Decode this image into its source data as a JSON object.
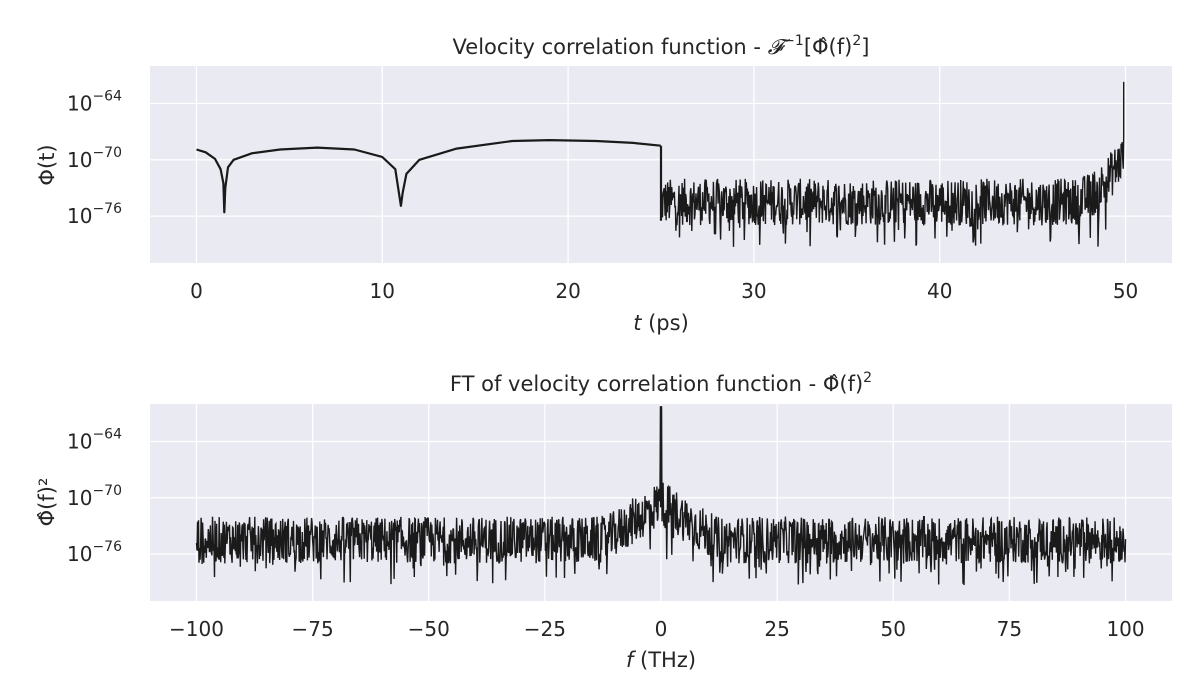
{
  "chart_data": [
    {
      "type": "line",
      "title_prefix": "Velocity correlation function - ",
      "title_math_op": "𝓕",
      "title_math_exp": "−1",
      "title_math_arg": "Φ̂(f)",
      "title_math_arg_exp": "2",
      "xlabel_var": "t",
      "xlabel_unit": " (ps)",
      "ylabel": "Φ(t)",
      "log_y": true,
      "xlim": [
        -2.5,
        52.5
      ],
      "ylim_log10": [
        -81,
        -60
      ],
      "xticks": [
        0,
        10,
        20,
        30,
        40,
        50
      ],
      "xtick_labels": [
        "0",
        "10",
        "20",
        "30",
        "40",
        "50"
      ],
      "yticks": [
        -64,
        -70,
        -76
      ],
      "ytick_base": "10",
      "ytick_exps": [
        "−64",
        "−70",
        "−76"
      ],
      "grid": true,
      "series": [
        {
          "x": [
            0,
            0.5,
            1.0,
            1.3,
            1.45,
            1.5,
            1.55,
            1.7,
            2.0,
            3.0,
            4.5,
            6.5,
            8.5,
            10.0,
            10.7,
            11.0,
            11.1,
            11.3,
            12.0,
            14.0,
            17.0,
            19.0,
            21.5,
            23.5,
            24.99
          ],
          "log10_y": [
            -68.9,
            -69.2,
            -69.9,
            -71.0,
            -72.5,
            -75.6,
            -73.0,
            -70.8,
            -70.0,
            -69.3,
            -68.9,
            -68.7,
            -68.9,
            -69.7,
            -71.0,
            -74.9,
            -73.5,
            -71.5,
            -70.0,
            -68.8,
            -68.0,
            -67.9,
            -68.0,
            -68.2,
            -68.5
          ]
        }
      ],
      "noise_band": {
        "x_range": [
          25,
          49.9
        ],
        "center_log10": -74.5,
        "spread_log10": 2.5,
        "min_log10": -79.3,
        "rise_end_log10": -61.7
      }
    },
    {
      "type": "line",
      "title_prefix": "FT of velocity correlation function - ",
      "title_math_arg": "Φ̂(f)",
      "title_math_arg_exp": "2",
      "xlabel_var": "f",
      "xlabel_unit": " (THz)",
      "ylabel": "Φ̂(f)²",
      "log_y": true,
      "xlim": [
        -110,
        110
      ],
      "ylim_log10": [
        -81,
        -60
      ],
      "xticks": [
        -100,
        -75,
        -50,
        -25,
        0,
        25,
        50,
        75,
        100
      ],
      "xtick_labels": [
        "−100",
        "−75",
        "−50",
        "−25",
        "0",
        "25",
        "50",
        "75",
        "100"
      ],
      "yticks": [
        -64,
        -70,
        -76
      ],
      "ytick_base": "10",
      "ytick_exps": [
        "−64",
        "−70",
        "−76"
      ],
      "grid": true,
      "noise_band": {
        "x_range": [
          -100,
          100
        ],
        "center_log10": -74.5,
        "spread_log10": 2.5,
        "min_log10": -79.3,
        "peak_x": 0,
        "peak_log10": -60.3
      }
    }
  ]
}
